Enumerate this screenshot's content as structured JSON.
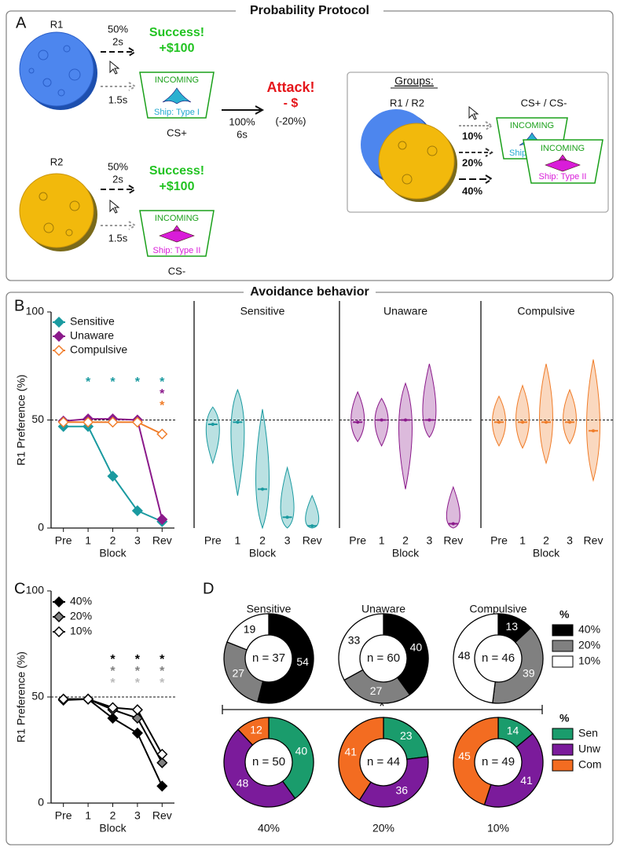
{
  "protocol": {
    "title": "Probability Protocol",
    "panel": "A",
    "rows": [
      {
        "reward": "R1",
        "prob": "50%",
        "delay": "2s",
        "outcome": "Success!",
        "amount": "+$100",
        "cue_delay": "1.5s",
        "cue": "INCOMING",
        "ship": "Ship: Type I",
        "cs": "CS+"
      },
      {
        "reward": "R2",
        "prob": "50%",
        "delay": "2s",
        "outcome": "Success!",
        "amount": "+$100",
        "cue_delay": "1.5s",
        "cue": "INCOMING",
        "ship": "Ship: Type II",
        "cs": "CS-"
      }
    ],
    "attack": {
      "prob": "100%",
      "delay": "6s",
      "outcome": "Attack!",
      "amount": "- $",
      "note": "(-20%)"
    },
    "groups": {
      "title": "Groups:",
      "left": "R1 / R2",
      "right": "CS+ / CS-",
      "probs": [
        "10%",
        "20%",
        "40%"
      ],
      "cue": "INCOMING",
      "ships": [
        "Ship: Type I",
        "Ship: Type II"
      ]
    }
  },
  "behavior_title": "Avoidance behavior",
  "d_significance": "*",
  "chart_data": [
    {
      "type": "line",
      "panel": "B",
      "categories": [
        "Pre",
        "1",
        "2",
        "3",
        "Rev"
      ],
      "xlabel": "Block",
      "ylabel": "R1 Preference (%)",
      "ylim": [
        0,
        100
      ],
      "yticks": [
        0,
        50,
        100
      ],
      "reference_line": 50,
      "series": [
        {
          "name": "Sensitive",
          "color": "#1a9aa0",
          "values": [
            47,
            47,
            24,
            8,
            3
          ],
          "stars": [
            null,
            "*",
            "*",
            "*",
            "*"
          ]
        },
        {
          "name": "Unaware",
          "color": "#8b1a8b",
          "values": [
            49.5,
            50.5,
            50.5,
            50,
            4
          ],
          "stars": [
            null,
            null,
            null,
            null,
            "*"
          ]
        },
        {
          "name": "Compulsive",
          "color": "#f07d2a",
          "fill": "#ffffff",
          "values": [
            49,
            49,
            49,
            49,
            43.5
          ],
          "stars": [
            null,
            null,
            null,
            null,
            "*"
          ]
        }
      ]
    },
    {
      "type": "violin",
      "title": "Sensitive",
      "color": "#1a9aa0",
      "categories": [
        "Pre",
        "1",
        "2",
        "3",
        "Rev"
      ],
      "xlabel": "Block",
      "ylim": [
        0,
        100
      ],
      "reference_line": 50,
      "values": [
        48,
        49,
        18,
        5,
        1
      ],
      "min": [
        30,
        15,
        0,
        0,
        0
      ],
      "max": [
        56,
        64,
        55,
        28,
        15
      ]
    },
    {
      "type": "violin",
      "title": "Unaware",
      "color": "#8b1a8b",
      "categories": [
        "Pre",
        "1",
        "2",
        "3",
        "Rev"
      ],
      "xlabel": "Block",
      "ylim": [
        0,
        100
      ],
      "reference_line": 50,
      "values": [
        49,
        50,
        50,
        50,
        2
      ],
      "min": [
        40,
        38,
        18,
        42,
        0
      ],
      "max": [
        63,
        60,
        67,
        76,
        19
      ]
    },
    {
      "type": "violin",
      "title": "Compulsive",
      "color": "#f07d2a",
      "categories": [
        "Pre",
        "1",
        "2",
        "3",
        "Rev"
      ],
      "xlabel": "Block",
      "ylim": [
        0,
        100
      ],
      "reference_line": 50,
      "values": [
        49,
        49,
        49,
        49,
        45
      ],
      "min": [
        38,
        37,
        30,
        39,
        22
      ],
      "max": [
        61,
        66,
        76,
        64,
        78
      ]
    },
    {
      "type": "line",
      "panel": "C",
      "categories": [
        "Pre",
        "1",
        "2",
        "3",
        "Rev"
      ],
      "xlabel": "Block",
      "ylabel": "R1 Preference (%)",
      "ylim": [
        0,
        100
      ],
      "yticks": [
        0,
        50,
        100
      ],
      "reference_line": 50,
      "series": [
        {
          "name": "40%",
          "color": "#000000",
          "fill": "#000000",
          "star_color": "#000000",
          "values": [
            48.5,
            49,
            40,
            33,
            8
          ],
          "stars": [
            null,
            null,
            "*",
            "*",
            "*"
          ]
        },
        {
          "name": "20%",
          "color": "#000000",
          "fill": "#808080",
          "star_color": "#808080",
          "values": [
            49,
            49,
            44,
            40,
            19
          ],
          "stars": [
            null,
            null,
            "*",
            "*",
            "*"
          ]
        },
        {
          "name": "10%",
          "color": "#000000",
          "fill": "#ffffff",
          "star_color": "#bbbbbb",
          "values": [
            49,
            49,
            45,
            44,
            23
          ],
          "stars": [
            null,
            null,
            "*",
            "*",
            "*"
          ]
        }
      ]
    },
    {
      "type": "pie",
      "panel": "D",
      "title": "Sensitive",
      "n_label": "n = 37",
      "legend_title": "%",
      "categories": [
        "40%",
        "20%",
        "10%"
      ],
      "colors": [
        "#000000",
        "#808080",
        "#ffffff"
      ],
      "label_colors": [
        "#ffffff",
        "#ffffff",
        "#000000"
      ],
      "values": [
        54,
        27,
        19
      ]
    },
    {
      "type": "pie",
      "title": "Unaware",
      "n_label": "n = 60",
      "categories": [
        "40%",
        "20%",
        "10%"
      ],
      "colors": [
        "#000000",
        "#808080",
        "#ffffff"
      ],
      "label_colors": [
        "#ffffff",
        "#ffffff",
        "#000000"
      ],
      "values": [
        40,
        27,
        33
      ]
    },
    {
      "type": "pie",
      "title": "Compulsive",
      "n_label": "n = 46",
      "categories": [
        "40%",
        "20%",
        "10%"
      ],
      "colors": [
        "#000000",
        "#808080",
        "#ffffff"
      ],
      "label_colors": [
        "#ffffff",
        "#ffffff",
        "#000000"
      ],
      "values": [
        13,
        39,
        48
      ]
    },
    {
      "type": "pie",
      "title": "40%",
      "n_label": "n = 50",
      "legend_title": "%",
      "categories": [
        "Sen",
        "Unw",
        "Com"
      ],
      "colors": [
        "#1a9c6c",
        "#7b1b9b",
        "#f36c21"
      ],
      "label_colors": [
        "#ffffff",
        "#ffffff",
        "#ffffff"
      ],
      "values": [
        40,
        48,
        12
      ]
    },
    {
      "type": "pie",
      "title": "20%",
      "n_label": "n = 44",
      "categories": [
        "Sen",
        "Unw",
        "Com"
      ],
      "colors": [
        "#1a9c6c",
        "#7b1b9b",
        "#f36c21"
      ],
      "label_colors": [
        "#ffffff",
        "#ffffff",
        "#ffffff"
      ],
      "values": [
        23,
        36,
        41
      ]
    },
    {
      "type": "pie",
      "title": "10%",
      "n_label": "n = 49",
      "categories": [
        "Sen",
        "Unw",
        "Com"
      ],
      "colors": [
        "#1a9c6c",
        "#7b1b9b",
        "#f36c21"
      ],
      "label_colors": [
        "#ffffff",
        "#ffffff",
        "#ffffff"
      ],
      "values": [
        14,
        41,
        45
      ]
    }
  ]
}
